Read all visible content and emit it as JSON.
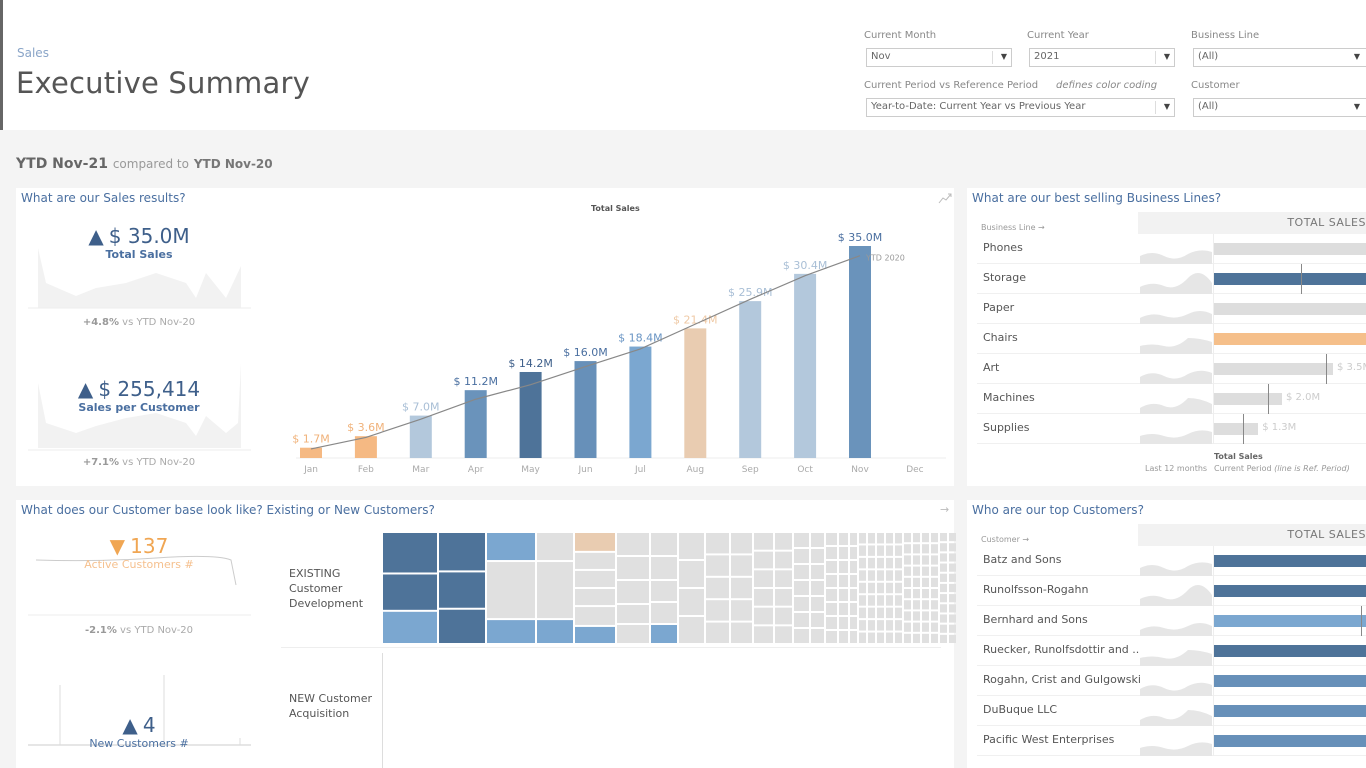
{
  "header": {
    "breadcrumb": "Sales",
    "title": "Executive Summary"
  },
  "filters": {
    "current_month": {
      "label": "Current Month",
      "value": "Nov"
    },
    "current_year": {
      "label": "Current Year",
      "value": "2021"
    },
    "business_line": {
      "label": "Business Line",
      "value": "(All)"
    },
    "period": {
      "label": "Current Period vs Reference Period",
      "note": "defines color coding",
      "value": "Year-to-Date: Current Year vs Previous Year"
    },
    "customer": {
      "label": "Customer",
      "value": "(All)"
    }
  },
  "period": {
    "current": "YTD Nov-21",
    "compared": "compared to",
    "reference": "YTD Nov-20"
  },
  "sales_panel": {
    "title": "What are our Sales results?",
    "kpis": [
      {
        "value": "$ 35.0M",
        "label": "Total Sales",
        "delta": "+4.8%",
        "vs": "vs YTD Nov-20",
        "direction": "up"
      },
      {
        "value": "$ 255,414",
        "label": "Sales per Customer",
        "delta": "+7.1%",
        "vs": "vs YTD Nov-20",
        "direction": "up"
      }
    ]
  },
  "chart_data": {
    "type": "bar",
    "title": "Total Sales",
    "categories": [
      "Jan",
      "Feb",
      "Mar",
      "Apr",
      "May",
      "Jun",
      "Jul",
      "Aug",
      "Sep",
      "Oct",
      "Nov",
      "Dec"
    ],
    "values": [
      1.7,
      3.6,
      7.0,
      11.2,
      14.2,
      16.0,
      18.4,
      21.4,
      25.9,
      30.4,
      35.0,
      null
    ],
    "labels": [
      "$ 1.7M",
      "$ 3.6M",
      "$ 7.0M",
      "$ 11.2M",
      "$ 14.2M",
      "$ 16.0M",
      "$ 18.4M",
      "$ 21.4M",
      "$ 25.9M",
      "$ 30.4M",
      "$ 35.0M",
      ""
    ],
    "colors": [
      "#f5b983",
      "#f5b983",
      "#b3c8dc",
      "#6a93bb",
      "#4e7399",
      "#6790b9",
      "#7ba7d0",
      "#e9ccb1",
      "#b3c8dc",
      "#b3c8dc",
      "#6a93bb",
      ""
    ],
    "label_colors": [
      "#f0b27a",
      "#f0b27a",
      "#a9bfd6",
      "#4a6fa0",
      "#3e5f8a",
      "#4a6fa0",
      "#6a95c4",
      "#efc9a5",
      "#a9bfd6",
      "#a9bfd6",
      "#4a6fa0",
      ""
    ],
    "reference": {
      "name": "YTD 2020",
      "values": [
        1.5,
        3.4,
        6.4,
        9.7,
        12.1,
        15.1,
        18.0,
        22.1,
        26.2,
        30.1,
        33.4
      ]
    },
    "ylim": [
      0,
      38
    ],
    "unit": "$M"
  },
  "business_lines": {
    "title": "What are our best selling Business Lines?",
    "column_label": "Business Line →",
    "header": "TOTAL SALES",
    "items": [
      {
        "name": "Phones",
        "color": "#dddddd",
        "label": ""
      },
      {
        "name": "Storage",
        "color": "#4e7399",
        "label": "",
        "ref": 2.55
      },
      {
        "name": "Paper",
        "color": "#dddddd",
        "label": ""
      },
      {
        "name": "Chairs",
        "color": "#f5bf8a",
        "label": ""
      },
      {
        "name": "Art",
        "value": 3.5,
        "ref": 3.3,
        "color": "#dddddd",
        "label": "$ 3.5M"
      },
      {
        "name": "Machines",
        "value": 2.0,
        "ref": 1.6,
        "color": "#dddddd",
        "label": "$ 2.0M"
      },
      {
        "name": "Supplies",
        "value": 1.3,
        "ref": 0.85,
        "color": "#dddddd",
        "label": "$ 1.3M"
      }
    ],
    "footer": {
      "title": "Total Sales",
      "last12": "Last 12 months",
      "current": "Current Period",
      "note": "(line is Ref. Period)"
    }
  },
  "customer_panel": {
    "title": "What does our Customer base look like? Existing or New Customers?",
    "active": {
      "value": "137",
      "label": "Active Customers #",
      "delta": "-2.1%",
      "vs": "vs YTD Nov-20",
      "direction": "down"
    },
    "new": {
      "value": "4",
      "label": "New Customers #",
      "direction": "up"
    },
    "existing_label": [
      "EXISTING",
      "Customer",
      "Development"
    ],
    "new_label": [
      "NEW Customer",
      "Acquisition"
    ]
  },
  "top_customers": {
    "title": "Who are our top Customers?",
    "column_label": "Customer →",
    "header": "TOTAL SALES",
    "items": [
      {
        "name": "Batz and Sons",
        "color": "#4e7399"
      },
      {
        "name": "Runolfsson-Rogahn",
        "color": "#4e7399"
      },
      {
        "name": "Bernhard and Sons",
        "color": "#7ba7d0"
      },
      {
        "name": "Ruecker, Runolfsdottir and ..",
        "color": "#4e7399"
      },
      {
        "name": "Rogahn, Crist and Gulgowski",
        "color": "#6790b9"
      },
      {
        "name": "DuBuque LLC",
        "color": "#6790b9"
      },
      {
        "name": "Pacific West Enterprises",
        "color": "#6790b9"
      }
    ]
  }
}
